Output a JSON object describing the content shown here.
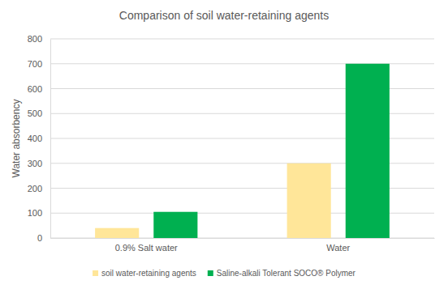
{
  "chart_data": {
    "type": "bar",
    "title": "Comparison of soil water-retaining agents",
    "y_label": "Water absorbency",
    "categories": [
      "0.9% Salt water",
      "Water"
    ],
    "series": [
      {
        "name": "soil water-retaining agents",
        "color": "#ffe699",
        "values": [
          40,
          300
        ]
      },
      {
        "name": "Saline-alkali Tolerant SOCO® Polymer",
        "color": "#00b050",
        "values": [
          105,
          700
        ]
      }
    ],
    "ylim": [
      0,
      800
    ],
    "yticks": [
      0,
      100,
      200,
      300,
      400,
      500,
      600,
      700,
      800
    ],
    "grid": true,
    "legend": "bottom"
  }
}
